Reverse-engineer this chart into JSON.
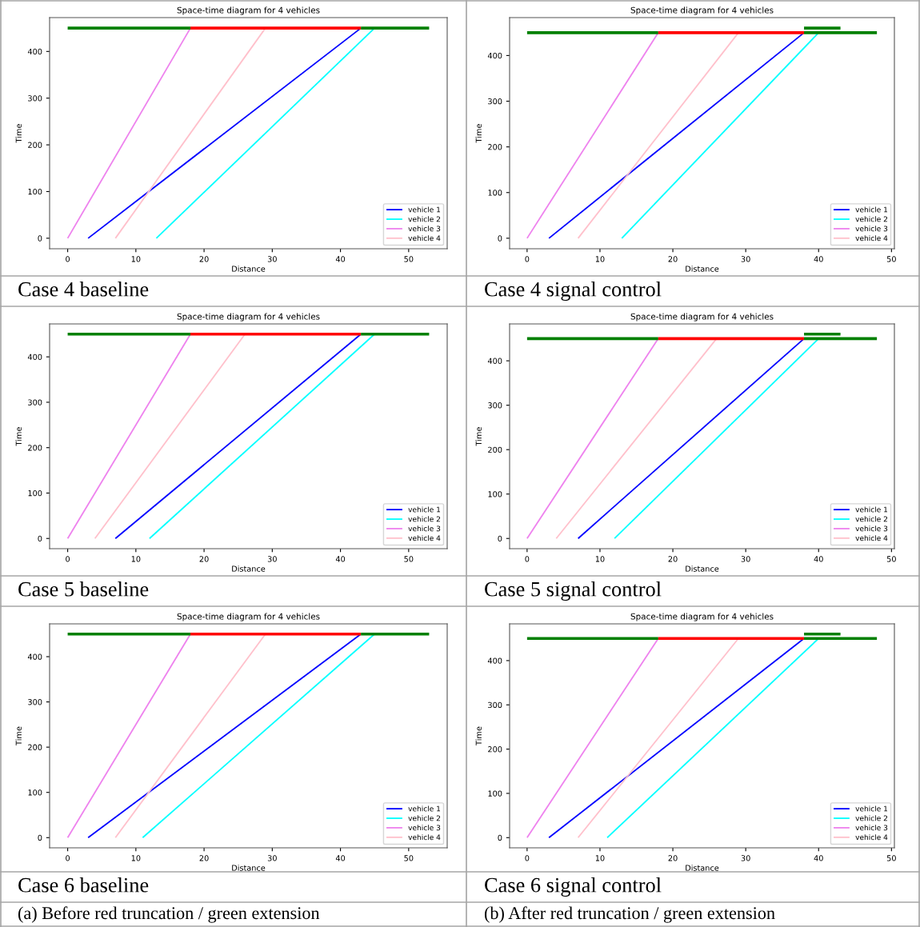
{
  "chart_data": [
    {
      "type": "line",
      "title": "Space-time diagram for 4 vehicles",
      "xlabel": "Distance",
      "ylabel": "Time",
      "xlim": [
        -2.65,
        55.65
      ],
      "ylim": [
        -22.5,
        472.5
      ],
      "xticks": [
        0,
        10,
        20,
        30,
        40,
        50
      ],
      "yticks": [
        0,
        100,
        200,
        300,
        400
      ],
      "grid": false,
      "legend": "bottom right",
      "marker": "none",
      "line_style": "solid",
      "annotations": [
        "Case 4 baseline"
      ],
      "series": [
        {
          "name": "vehicle 1",
          "color": "#0000ff",
          "x": [
            3,
            43
          ],
          "values": [
            0,
            450
          ]
        },
        {
          "name": "vehicle 2",
          "color": "#00ffff",
          "x": [
            13,
            45
          ],
          "values": [
            0,
            450
          ]
        },
        {
          "name": "vehicle 3",
          "color": "#ee82ee",
          "x": [
            0,
            18
          ],
          "values": [
            0,
            450
          ]
        },
        {
          "name": "vehicle 4",
          "color": "#ffc0cb",
          "x": [
            7,
            29
          ],
          "values": [
            0,
            450
          ]
        },
        {
          "color": "#008000",
          "x": [
            0,
            18
          ],
          "values": [
            450,
            450
          ]
        },
        {
          "color": "#ff0000",
          "x": [
            18,
            43
          ],
          "values": [
            450,
            450
          ]
        },
        {
          "color": "#008000",
          "x": [
            43,
            53
          ],
          "values": [
            450,
            450
          ]
        }
      ]
    },
    {
      "type": "line",
      "title": "Space-time diagram for 4 vehicles",
      "xlabel": "Distance",
      "ylabel": "Time",
      "xlim": [
        -2.4,
        50.4
      ],
      "ylim": [
        -23,
        483
      ],
      "xticks": [
        0,
        10,
        20,
        30,
        40,
        50
      ],
      "yticks": [
        0,
        100,
        200,
        300,
        400
      ],
      "grid": false,
      "legend": "bottom right",
      "marker": "none",
      "line_style": "solid",
      "annotations": [
        "Case 4 signal control"
      ],
      "series": [
        {
          "name": "vehicle 1",
          "color": "#0000ff",
          "x": [
            3,
            38
          ],
          "values": [
            0,
            450
          ]
        },
        {
          "name": "vehicle 2",
          "color": "#00ffff",
          "x": [
            13,
            40
          ],
          "values": [
            0,
            450
          ]
        },
        {
          "name": "vehicle 3",
          "color": "#ee82ee",
          "x": [
            0,
            18
          ],
          "values": [
            0,
            450
          ]
        },
        {
          "name": "vehicle 4",
          "color": "#ffc0cb",
          "x": [
            7,
            29
          ],
          "values": [
            0,
            450
          ]
        },
        {
          "color": "#008000",
          "x": [
            0,
            18
          ],
          "values": [
            450,
            450
          ]
        },
        {
          "color": "#ff0000",
          "x": [
            18,
            38
          ],
          "values": [
            450,
            450
          ]
        },
        {
          "color": "#008000",
          "x": [
            38,
            48
          ],
          "values": [
            450,
            450
          ]
        },
        {
          "color": "#008000",
          "x": [
            38,
            43
          ],
          "values": [
            460,
            460
          ]
        }
      ]
    },
    {
      "type": "line",
      "title": "Space-time diagram for 4 vehicles",
      "xlabel": "Distance",
      "ylabel": "Time",
      "xlim": [
        -2.65,
        55.65
      ],
      "ylim": [
        -22.5,
        472.5
      ],
      "xticks": [
        0,
        10,
        20,
        30,
        40,
        50
      ],
      "yticks": [
        0,
        100,
        200,
        300,
        400
      ],
      "grid": false,
      "legend": "bottom right",
      "marker": "none",
      "line_style": "solid",
      "annotations": [
        "Case 5 baseline"
      ],
      "series": [
        {
          "name": "vehicle 1",
          "color": "#0000ff",
          "x": [
            7,
            43
          ],
          "values": [
            0,
            450
          ]
        },
        {
          "name": "vehicle 2",
          "color": "#00ffff",
          "x": [
            12,
            45
          ],
          "values": [
            0,
            450
          ]
        },
        {
          "name": "vehicle 3",
          "color": "#ee82ee",
          "x": [
            0,
            18
          ],
          "values": [
            0,
            450
          ]
        },
        {
          "name": "vehicle 4",
          "color": "#ffc0cb",
          "x": [
            4,
            26
          ],
          "values": [
            0,
            450
          ]
        },
        {
          "color": "#008000",
          "x": [
            0,
            18
          ],
          "values": [
            450,
            450
          ]
        },
        {
          "color": "#ff0000",
          "x": [
            18,
            43
          ],
          "values": [
            450,
            450
          ]
        },
        {
          "color": "#008000",
          "x": [
            43,
            53
          ],
          "values": [
            450,
            450
          ]
        }
      ]
    },
    {
      "type": "line",
      "title": "Space-time diagram for 4 vehicles",
      "xlabel": "Distance",
      "ylabel": "Time",
      "xlim": [
        -2.4,
        50.4
      ],
      "ylim": [
        -23,
        483
      ],
      "xticks": [
        0,
        10,
        20,
        30,
        40,
        50
      ],
      "yticks": [
        0,
        100,
        200,
        300,
        400
      ],
      "grid": false,
      "legend": "bottom right",
      "marker": "none",
      "line_style": "solid",
      "annotations": [
        "Case 5 signal control"
      ],
      "series": [
        {
          "name": "vehicle 1",
          "color": "#0000ff",
          "x": [
            7,
            38
          ],
          "values": [
            0,
            450
          ]
        },
        {
          "name": "vehicle 2",
          "color": "#00ffff",
          "x": [
            12,
            40
          ],
          "values": [
            0,
            450
          ]
        },
        {
          "name": "vehicle 3",
          "color": "#ee82ee",
          "x": [
            0,
            18
          ],
          "values": [
            0,
            450
          ]
        },
        {
          "name": "vehicle 4",
          "color": "#ffc0cb",
          "x": [
            4,
            26
          ],
          "values": [
            0,
            450
          ]
        },
        {
          "color": "#008000",
          "x": [
            0,
            18
          ],
          "values": [
            450,
            450
          ]
        },
        {
          "color": "#ff0000",
          "x": [
            18,
            38
          ],
          "values": [
            450,
            450
          ]
        },
        {
          "color": "#008000",
          "x": [
            38,
            48
          ],
          "values": [
            450,
            450
          ]
        },
        {
          "color": "#008000",
          "x": [
            38,
            43
          ],
          "values": [
            460,
            460
          ]
        }
      ]
    },
    {
      "type": "line",
      "title": "Space-time diagram for 4 vehicles",
      "xlabel": "Distance",
      "ylabel": "Time",
      "xlim": [
        -2.65,
        55.65
      ],
      "ylim": [
        -22.5,
        472.5
      ],
      "xticks": [
        0,
        10,
        20,
        30,
        40,
        50
      ],
      "yticks": [
        0,
        100,
        200,
        300,
        400
      ],
      "grid": false,
      "legend": "bottom right",
      "marker": "none",
      "line_style": "solid",
      "annotations": [
        "Case 6 baseline",
        "(a) Before red truncation / green extension"
      ],
      "series": [
        {
          "name": "vehicle 1",
          "color": "#0000ff",
          "x": [
            3,
            43
          ],
          "values": [
            0,
            450
          ]
        },
        {
          "name": "vehicle 2",
          "color": "#00ffff",
          "x": [
            11,
            45
          ],
          "values": [
            0,
            450
          ]
        },
        {
          "name": "vehicle 3",
          "color": "#ee82ee",
          "x": [
            0,
            18
          ],
          "values": [
            0,
            450
          ]
        },
        {
          "name": "vehicle 4",
          "color": "#ffc0cb",
          "x": [
            7,
            29
          ],
          "values": [
            0,
            450
          ]
        },
        {
          "color": "#008000",
          "x": [
            0,
            18
          ],
          "values": [
            450,
            450
          ]
        },
        {
          "color": "#ff0000",
          "x": [
            18,
            43
          ],
          "values": [
            450,
            450
          ]
        },
        {
          "color": "#008000",
          "x": [
            43,
            53
          ],
          "values": [
            450,
            450
          ]
        }
      ]
    },
    {
      "type": "line",
      "title": "Space-time diagram for 4 vehicles",
      "xlabel": "Distance",
      "ylabel": "Time",
      "xlim": [
        -2.4,
        50.4
      ],
      "ylim": [
        -23,
        483
      ],
      "xticks": [
        0,
        10,
        20,
        30,
        40,
        50
      ],
      "yticks": [
        0,
        100,
        200,
        300,
        400
      ],
      "grid": false,
      "legend": "bottom right",
      "marker": "none",
      "line_style": "solid",
      "annotations": [
        "Case 6 signal control",
        "(b) After red truncation / green extension"
      ],
      "series": [
        {
          "name": "vehicle 1",
          "color": "#0000ff",
          "x": [
            3,
            38
          ],
          "values": [
            0,
            450
          ]
        },
        {
          "name": "vehicle 2",
          "color": "#00ffff",
          "x": [
            11,
            40
          ],
          "values": [
            0,
            450
          ]
        },
        {
          "name": "vehicle 3",
          "color": "#ee82ee",
          "x": [
            0,
            18
          ],
          "values": [
            0,
            450
          ]
        },
        {
          "name": "vehicle 4",
          "color": "#ffc0cb",
          "x": [
            7,
            29
          ],
          "values": [
            0,
            450
          ]
        },
        {
          "color": "#008000",
          "x": [
            0,
            18
          ],
          "values": [
            450,
            450
          ]
        },
        {
          "color": "#ff0000",
          "x": [
            18,
            38
          ],
          "values": [
            450,
            450
          ]
        },
        {
          "color": "#008000",
          "x": [
            38,
            48
          ],
          "values": [
            450,
            450
          ]
        },
        {
          "color": "#008000",
          "x": [
            38,
            43
          ],
          "values": [
            460,
            460
          ]
        }
      ]
    }
  ]
}
